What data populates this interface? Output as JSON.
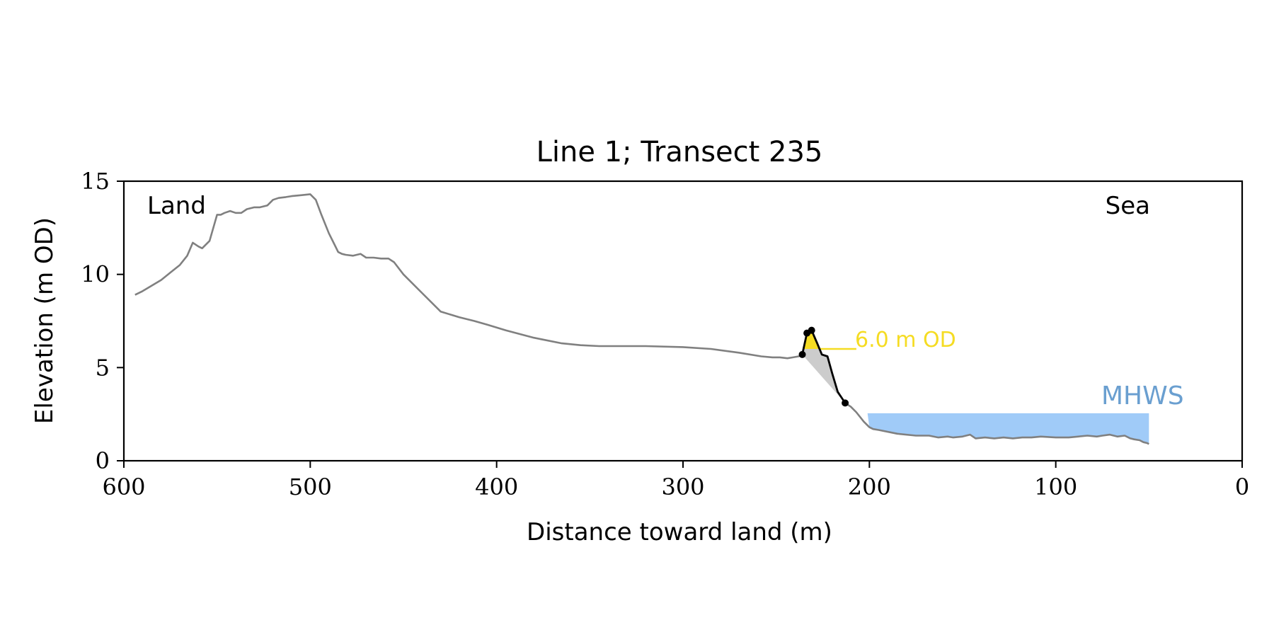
{
  "chart_data": {
    "type": "line",
    "title": "Line 1; Transect 235",
    "xlabel": "Distance toward land (m)",
    "ylabel": "Elevation (m OD)",
    "xlim": [
      600,
      0
    ],
    "ylim": [
      0,
      15
    ],
    "x_ticks": [
      600,
      500,
      400,
      300,
      200,
      100,
      0
    ],
    "x_tick_labels": [
      "600",
      "500",
      "400",
      "300",
      "200",
      "100",
      "0"
    ],
    "y_ticks": [
      0,
      5,
      10,
      15
    ],
    "y_tick_labels": [
      "0",
      "5",
      "10",
      "15"
    ],
    "grid": false,
    "annotations": {
      "land_label": "Land",
      "sea_label": "Sea",
      "mhws_label": "MHWS",
      "od_label": "6.0 m OD"
    },
    "colors": {
      "profile": "#808080",
      "cliff": "#000000",
      "mhws_fill": "#a0cbf8",
      "mhws_text": "#6a9fd0",
      "od_line": "#f5dc23",
      "od_fill": "#f5dc23",
      "wedge_fill": "#cccccc"
    },
    "profile": {
      "x": [
        594,
        590,
        585,
        580,
        575,
        570,
        566,
        563,
        560,
        558,
        554,
        550,
        548,
        546,
        543,
        540,
        537,
        534,
        530,
        527,
        523,
        520,
        517,
        513,
        510,
        505,
        500,
        497,
        494,
        490,
        487,
        485,
        483,
        481,
        477,
        473,
        470,
        466,
        462,
        458,
        455,
        450,
        440,
        430,
        420,
        416,
        412,
        405,
        395,
        380,
        365,
        355,
        345,
        335,
        320,
        300,
        285,
        270,
        258,
        252,
        248,
        244,
        241,
        238,
        236
      ],
      "y": [
        8.9,
        9.1,
        9.4,
        9.7,
        10.1,
        10.5,
        11.0,
        11.7,
        11.5,
        11.4,
        11.8,
        13.2,
        13.2,
        13.3,
        13.4,
        13.3,
        13.3,
        13.5,
        13.6,
        13.6,
        13.7,
        14.0,
        14.1,
        14.15,
        14.2,
        14.25,
        14.3,
        14.0,
        13.2,
        12.2,
        11.6,
        11.2,
        11.1,
        11.05,
        11.0,
        11.1,
        10.9,
        10.9,
        10.85,
        10.85,
        10.65,
        10.0,
        9.0,
        8.0,
        7.7,
        7.6,
        7.5,
        7.3,
        7.0,
        6.6,
        6.3,
        6.2,
        6.15,
        6.15,
        6.15,
        6.1,
        6.0,
        5.8,
        5.6,
        5.55,
        5.55,
        5.5,
        5.55,
        5.6,
        5.7
      ]
    },
    "cliff": {
      "x": [
        236,
        233.5,
        231,
        228,
        225.5,
        222.5,
        220,
        217,
        213
      ],
      "y": [
        5.7,
        6.85,
        7.0,
        6.3,
        5.7,
        5.6,
        4.7,
        3.7,
        3.1
      ]
    },
    "cliff_points": {
      "x": [
        236,
        233.5,
        231,
        213
      ],
      "y": [
        5.7,
        6.85,
        7.0,
        3.1
      ]
    },
    "foreshore": {
      "x": [
        213,
        210,
        207,
        203,
        200,
        198,
        195,
        185,
        175,
        168,
        163,
        158,
        155,
        150,
        146,
        143,
        138,
        133,
        128,
        123,
        118,
        113,
        108,
        100,
        93,
        88,
        83,
        78,
        75,
        71,
        67,
        63,
        60,
        58,
        55,
        53,
        51,
        50
      ],
      "y": [
        3.1,
        2.9,
        2.6,
        2.1,
        1.8,
        1.7,
        1.65,
        1.45,
        1.35,
        1.35,
        1.25,
        1.3,
        1.25,
        1.3,
        1.4,
        1.2,
        1.25,
        1.2,
        1.25,
        1.2,
        1.25,
        1.25,
        1.3,
        1.25,
        1.25,
        1.3,
        1.35,
        1.3,
        1.35,
        1.4,
        1.3,
        1.35,
        1.2,
        1.15,
        1.1,
        1.0,
        0.95,
        0.9
      ]
    },
    "mhws": {
      "level": 2.55,
      "x_from": 201,
      "x_to": 50
    },
    "od_level": {
      "level": 6.0,
      "x_from": 236,
      "x_to": 207
    }
  }
}
